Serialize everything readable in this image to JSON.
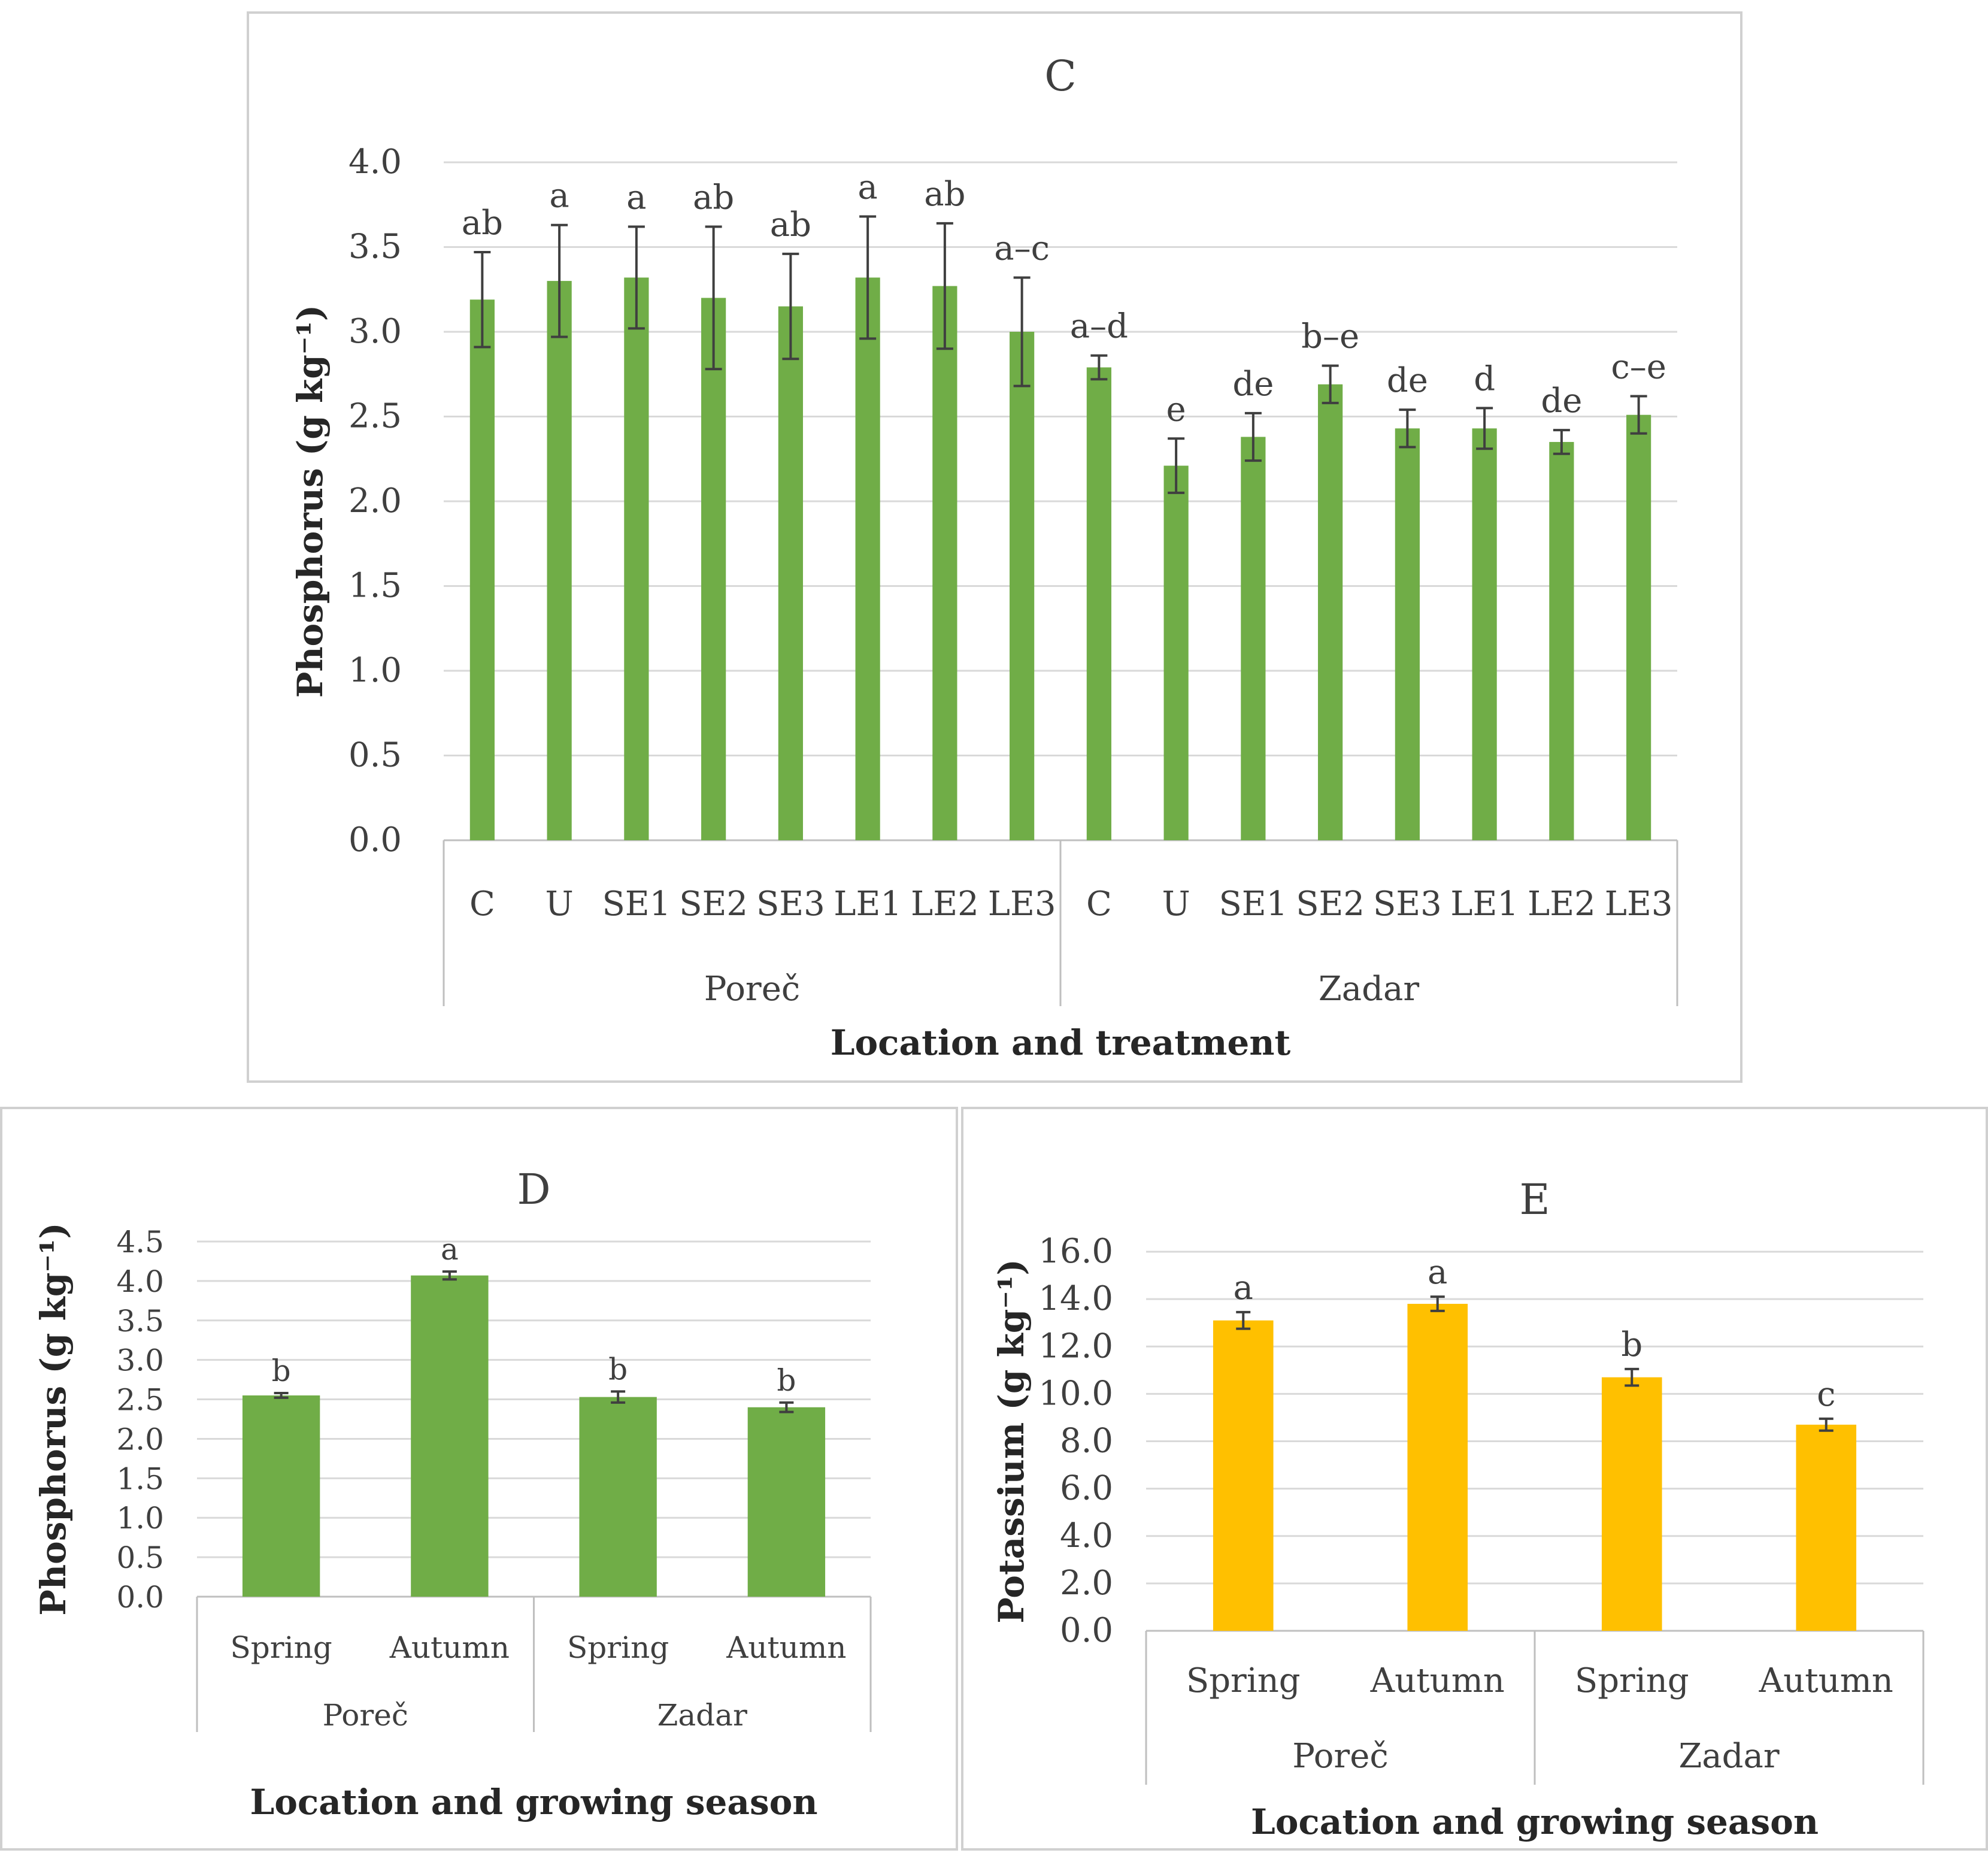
{
  "colors": {
    "phosphorus_bar": "#70ad47",
    "potassium_bar": "#ffc000",
    "error_bar": "#3f3f3f",
    "grid": "#d9d9d9",
    "axis_line": "#bfbfbf"
  },
  "chart_data": [
    {
      "type": "bar",
      "title": "C",
      "xlabel": "Location and treatment",
      "ylabel": "Phosphorus (g kg⁻¹)",
      "ylim": [
        0,
        4.0
      ],
      "yticks": [
        "0.0",
        "0.5",
        "1.0",
        "1.5",
        "2.0",
        "2.5",
        "3.0",
        "3.5",
        "4.0"
      ],
      "ytick_step": 0.5,
      "grid": true,
      "groups": [
        {
          "name": "Poreč",
          "categories": [
            "C",
            "U",
            "SE1",
            "SE2",
            "SE3",
            "LE1",
            "LE2",
            "LE3"
          ]
        },
        {
          "name": "Zadar",
          "categories": [
            "C",
            "U",
            "SE1",
            "SE2",
            "SE3",
            "LE1",
            "LE2",
            "LE3"
          ]
        }
      ],
      "values": [
        3.19,
        3.3,
        3.32,
        3.2,
        3.15,
        3.32,
        3.27,
        3.0,
        2.79,
        2.21,
        2.38,
        2.69,
        2.43,
        2.43,
        2.35,
        2.51
      ],
      "errors": [
        0.28,
        0.33,
        0.3,
        0.42,
        0.31,
        0.36,
        0.37,
        0.32,
        0.07,
        0.16,
        0.14,
        0.11,
        0.11,
        0.12,
        0.07,
        0.11
      ],
      "letters": [
        "ab",
        "a",
        "a",
        "ab",
        "ab",
        "a",
        "ab",
        "a–c",
        "a–d",
        "e",
        "de",
        "b–e",
        "de",
        "d",
        "de",
        "c–e"
      ]
    },
    {
      "type": "bar",
      "title": "D",
      "xlabel": "Location and growing season",
      "ylabel": "Phosphorus (g kg⁻¹)",
      "ylim": [
        0,
        4.5
      ],
      "yticks": [
        "0.0",
        "0.5",
        "1.0",
        "1.5",
        "2.0",
        "2.5",
        "3.0",
        "3.5",
        "4.0",
        "4.5"
      ],
      "ytick_step": 0.5,
      "grid": true,
      "groups": [
        {
          "name": "Poreč",
          "categories": [
            "Spring",
            "Autumn"
          ]
        },
        {
          "name": "Zadar",
          "categories": [
            "Spring",
            "Autumn"
          ]
        }
      ],
      "values": [
        2.55,
        4.07,
        2.53,
        2.4
      ],
      "errors": [
        0.03,
        0.05,
        0.07,
        0.06
      ],
      "letters": [
        "b",
        "a",
        "b",
        "b"
      ]
    },
    {
      "type": "bar",
      "title": "E",
      "xlabel": "Location and growing season",
      "ylabel": "Potassium (g kg⁻¹)",
      "ylim": [
        0,
        16.0
      ],
      "yticks": [
        "0.0",
        "2.0",
        "4.0",
        "6.0",
        "8.0",
        "10.0",
        "12.0",
        "14.0",
        "16.0"
      ],
      "ytick_step": 2.0,
      "grid": true,
      "groups": [
        {
          "name": "Poreč",
          "categories": [
            "Spring",
            "Autumn"
          ]
        },
        {
          "name": "Zadar",
          "categories": [
            "Spring",
            "Autumn"
          ]
        }
      ],
      "values": [
        13.1,
        13.8,
        10.7,
        8.7
      ],
      "errors": [
        0.35,
        0.3,
        0.35,
        0.25
      ],
      "letters": [
        "a",
        "a",
        "b",
        "c"
      ]
    }
  ]
}
